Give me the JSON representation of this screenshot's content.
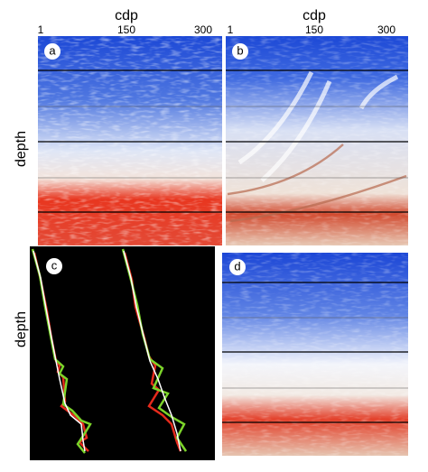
{
  "panels": [
    {
      "label": "a",
      "axis_title": "cdp",
      "ticks": [
        "1",
        "150",
        "300"
      ]
    },
    {
      "label": "b",
      "axis_title": "cdp",
      "ticks": [
        "1",
        "150",
        "300"
      ]
    },
    {
      "label": "c"
    },
    {
      "label": "d"
    }
  ],
  "y_axis_titles": [
    "depth",
    "depth"
  ]
}
